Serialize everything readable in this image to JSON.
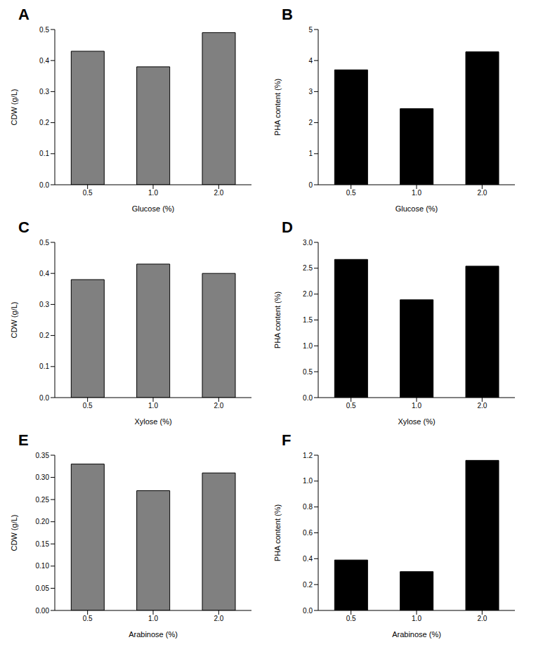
{
  "chart_data": [
    {
      "type": "bar",
      "title": "A",
      "x_label": "Glucose (%)",
      "y_label": "CDW (g/L)",
      "categories": [
        "0.5",
        "1.0",
        "2.0"
      ],
      "values": [
        0.43,
        0.38,
        0.49
      ],
      "color": "#808080",
      "ylim": [
        0,
        0.5
      ],
      "yticks": [
        {
          "value": 0,
          "label": "0.0"
        },
        0.1,
        0.2,
        0.3,
        0.4,
        0.5
      ]
    },
    {
      "type": "bar",
      "title": "B",
      "x_label": "Glucose (%)",
      "y_label": "PHA content (%)",
      "categories": [
        "0.5",
        "1.0",
        "2.0"
      ],
      "values": [
        3.7,
        2.45,
        4.28
      ],
      "color": "#000000",
      "ylim": [
        0,
        5
      ],
      "yticks": [
        0,
        1,
        2,
        3,
        4,
        5
      ]
    },
    {
      "type": "bar",
      "title": "C",
      "x_label": "Xylose (%)",
      "y_label": "CDW (g/L)",
      "categories": [
        "0.5",
        "1.0",
        "2.0"
      ],
      "values": [
        0.38,
        0.43,
        0.4
      ],
      "color": "#808080",
      "ylim": [
        0,
        0.5
      ],
      "yticks": [
        {
          "value": 0,
          "label": "0.0"
        },
        0.1,
        0.2,
        0.3,
        0.4,
        0.5
      ]
    },
    {
      "type": "bar",
      "title": "D",
      "x_label": "Xylose (%)",
      "y_label": "PHA content (%)",
      "categories": [
        "0.5",
        "1.0",
        "2.0"
      ],
      "values": [
        2.67,
        1.89,
        2.54
      ],
      "color": "#000000",
      "ylim": [
        0,
        3
      ],
      "yticks": [
        {
          "value": 0,
          "label": "0.0"
        },
        0.5,
        {
          "value": 1,
          "label": "1.0"
        },
        1.5,
        {
          "value": 2,
          "label": "2.0"
        },
        2.5,
        {
          "value": 3,
          "label": "3.0"
        }
      ]
    },
    {
      "type": "bar",
      "title": "E",
      "x_label": "Arabinose (%)",
      "y_label": "CDW (g/L)",
      "categories": [
        "0.5",
        "1.0",
        "2.0"
      ],
      "values": [
        0.33,
        0.27,
        0.31
      ],
      "color": "#808080",
      "ylim": [
        0,
        0.35
      ],
      "yticks": [
        {
          "value": 0,
          "label": "0.00"
        },
        0.05,
        {
          "value": 0.1,
          "label": "0.10"
        },
        0.15,
        {
          "value": 0.2,
          "label": "0.20"
        },
        0.25,
        {
          "value": 0.3,
          "label": "0.30"
        },
        0.35
      ]
    },
    {
      "type": "bar",
      "title": "F",
      "x_label": "Arabinose (%)",
      "y_label": "PHA content (%)",
      "categories": [
        "0.5",
        "1.0",
        "2.0"
      ],
      "values": [
        0.39,
        0.3,
        1.16
      ],
      "color": "#000000",
      "ylim": [
        0,
        1.2
      ],
      "yticks": [
        {
          "value": 0,
          "label": "0.0"
        },
        0.2,
        0.4,
        0.6,
        0.8,
        {
          "value": 1,
          "label": "1.0"
        },
        1.2
      ]
    }
  ]
}
